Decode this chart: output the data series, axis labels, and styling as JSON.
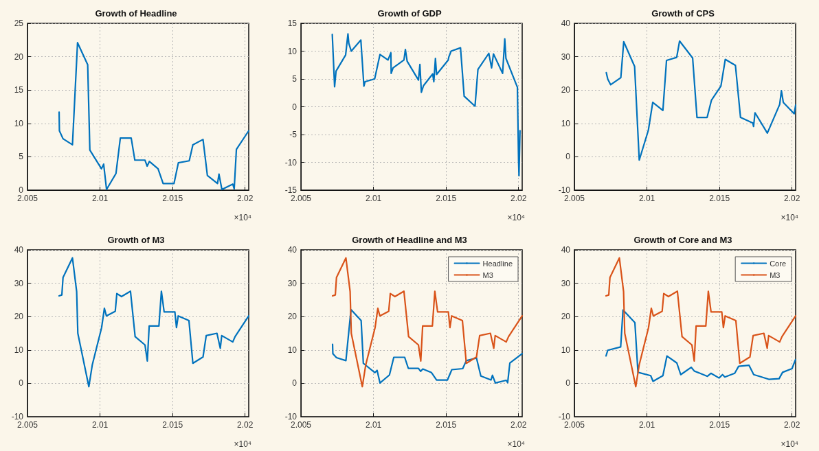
{
  "chart_data": [
    {
      "type": "line",
      "title": "Growth of Headline",
      "annotations": [
        "×10⁴"
      ],
      "xlim": [
        2.005,
        2.02025
      ],
      "xticks": [
        2.005,
        2.01,
        2.015,
        2.02
      ],
      "ylim": [
        0,
        25
      ],
      "yticks": [
        0,
        5,
        10,
        15,
        20,
        25
      ],
      "grid": true,
      "series": [
        {
          "color": "#0072bd",
          "x": [
            2.00718,
            2.0072,
            2.00745,
            2.0081,
            2.00845,
            2.00915,
            2.0093,
            2.0101,
            2.01025,
            2.01045,
            2.0111,
            2.0114,
            2.01215,
            2.0124,
            2.0131,
            2.01325,
            2.0134,
            2.014,
            2.01435,
            2.0151,
            2.0154,
            2.01615,
            2.0164,
            2.0171,
            2.0174,
            2.0181,
            2.0182,
            2.0184,
            2.01915,
            2.01925,
            2.0194,
            2.02025
          ],
          "values": [
            11.7,
            8.9,
            7.7,
            6.8,
            22.1,
            18.8,
            6.0,
            3.2,
            3.9,
            0.1,
            2.5,
            7.8,
            7.8,
            4.5,
            4.5,
            3.6,
            4.3,
            3.2,
            1.0,
            1.0,
            4.1,
            4.4,
            6.8,
            7.6,
            2.2,
            1.0,
            2.4,
            0.1,
            0.9,
            0.2,
            6.1,
            8.9
          ]
        }
      ]
    },
    {
      "type": "line",
      "title": "Growth of GDP",
      "annotations": [
        "×10⁴"
      ],
      "xlim": [
        2.005,
        2.02025
      ],
      "xticks": [
        2.005,
        2.01,
        2.015,
        2.02
      ],
      "ylim": [
        -15,
        15
      ],
      "yticks": [
        -15,
        -10,
        -5,
        0,
        5,
        10,
        15
      ],
      "grid": true,
      "series": [
        {
          "color": "#0072bd",
          "x": [
            2.00716,
            2.00732,
            2.00742,
            2.00808,
            2.00824,
            2.0083,
            2.00847,
            2.00913,
            2.00934,
            2.00942,
            2.01008,
            2.01045,
            2.011,
            2.0112,
            2.01122,
            2.01135,
            2.0121,
            2.0122,
            2.01232,
            2.0131,
            2.0132,
            2.0133,
            2.01345,
            2.01408,
            2.01416,
            2.01427,
            2.01435,
            2.01515,
            2.0152,
            2.01535,
            2.016,
            2.01625,
            2.017,
            2.0172,
            2.01795,
            2.01814,
            2.01827,
            2.0189,
            2.01905,
            2.01913,
            2.01992,
            2.02,
            2.02003,
            2.0201
          ],
          "values": [
            13.0,
            3.6,
            6.4,
            9.3,
            13.1,
            11.4,
            10.0,
            12.0,
            3.7,
            4.5,
            5.0,
            9.4,
            8.4,
            9.7,
            6.0,
            7.0,
            8.4,
            10.3,
            8.2,
            4.8,
            7.6,
            2.6,
            3.8,
            5.9,
            4.5,
            8.7,
            5.8,
            8.4,
            9.0,
            10.0,
            10.6,
            1.9,
            0.1,
            6.7,
            9.6,
            7.0,
            9.5,
            6.0,
            12.2,
            8.7,
            3.5,
            -9.7,
            -12.4,
            -4.3
          ]
        }
      ]
    },
    {
      "type": "line",
      "title": "Growth of CPS",
      "annotations": [
        "×10⁴"
      ],
      "xlim": [
        2.005,
        2.02025
      ],
      "xticks": [
        2.005,
        2.01,
        2.015,
        2.02
      ],
      "ylim": [
        -10,
        40
      ],
      "yticks": [
        -10,
        0,
        10,
        20,
        30,
        40
      ],
      "grid": true,
      "series": [
        {
          "color": "#0072bd",
          "x": [
            2.0072,
            2.0073,
            2.0075,
            2.0082,
            2.0084,
            2.00915,
            2.00947,
            2.0101,
            2.0104,
            2.0111,
            2.01135,
            2.01205,
            2.01225,
            2.01315,
            2.01345,
            2.01415,
            2.01445,
            2.0151,
            2.0154,
            2.0161,
            2.01645,
            2.0173,
            2.01735,
            2.01745,
            2.0183,
            2.01915,
            2.01927,
            2.0194,
            2.02015,
            2.02025
          ],
          "values": [
            25.2,
            23.3,
            21.6,
            23.7,
            34.5,
            27.1,
            -1.0,
            8.0,
            16.3,
            13.9,
            28.9,
            29.8,
            34.7,
            29.6,
            11.8,
            11.8,
            17.0,
            21.2,
            29.2,
            27.4,
            11.8,
            10.1,
            9.1,
            13.2,
            7.1,
            15.7,
            19.8,
            16.3,
            12.9,
            15.5
          ]
        }
      ]
    },
    {
      "type": "line",
      "title": "Growth of M3",
      "annotations": [
        "×10⁴"
      ],
      "xlim": [
        2.005,
        2.02025
      ],
      "xticks": [
        2.005,
        2.01,
        2.015,
        2.02
      ],
      "ylim": [
        -10,
        40
      ],
      "yticks": [
        -10,
        0,
        10,
        20,
        30,
        40
      ],
      "grid": true,
      "series": [
        {
          "color": "#0072bd",
          "x": [
            2.00718,
            2.00737,
            2.00745,
            2.0081,
            2.00839,
            2.00847,
            2.00923,
            2.00947,
            2.01011,
            2.0103,
            2.01044,
            2.01105,
            2.01116,
            2.01148,
            2.0121,
            2.01242,
            2.0131,
            2.01326,
            2.01339,
            2.01406,
            2.01423,
            2.01442,
            2.01516,
            2.01527,
            2.01539,
            2.01613,
            2.0164,
            2.0171,
            2.01732,
            2.01806,
            2.01829,
            2.01839,
            2.01915,
            2.01931,
            2.02025
          ],
          "values": [
            26.2,
            26.5,
            31.7,
            37.6,
            27.5,
            15.0,
            -1.0,
            5.6,
            16.7,
            22.5,
            20.2,
            21.6,
            26.9,
            26.0,
            27.6,
            14.0,
            11.5,
            6.7,
            17.2,
            17.2,
            27.6,
            21.4,
            21.4,
            16.7,
            20.2,
            18.8,
            6.0,
            7.9,
            14.3,
            15.0,
            10.5,
            14.3,
            12.4,
            14.0,
            20.2
          ]
        }
      ]
    },
    {
      "type": "line",
      "title": "Growth of Headline and M3",
      "annotations": [
        "×10⁴"
      ],
      "xlim": [
        2.005,
        2.02025
      ],
      "xticks": [
        2.005,
        2.01,
        2.015,
        2.02
      ],
      "ylim": [
        -10,
        40
      ],
      "yticks": [
        -10,
        0,
        10,
        20,
        30,
        40
      ],
      "grid": true,
      "legend": "top right",
      "series": [
        {
          "name": "Headline",
          "color": "#0072bd",
          "x": [
            2.00718,
            2.0072,
            2.00745,
            2.0081,
            2.00845,
            2.00915,
            2.0093,
            2.0101,
            2.01025,
            2.01045,
            2.0111,
            2.0114,
            2.01215,
            2.0124,
            2.0131,
            2.01325,
            2.0134,
            2.014,
            2.01435,
            2.0151,
            2.0154,
            2.01615,
            2.0164,
            2.0171,
            2.0174,
            2.0181,
            2.0182,
            2.0184,
            2.01915,
            2.01925,
            2.0194,
            2.02025
          ],
          "values": [
            11.7,
            8.9,
            7.7,
            6.8,
            22.1,
            18.8,
            6.0,
            3.2,
            3.9,
            0.1,
            2.5,
            7.8,
            7.8,
            4.5,
            4.5,
            3.6,
            4.3,
            3.2,
            1.0,
            1.0,
            4.1,
            4.4,
            6.8,
            7.6,
            2.2,
            1.0,
            2.4,
            0.1,
            0.9,
            0.2,
            6.1,
            8.9
          ]
        },
        {
          "name": "M3",
          "color": "#d95319",
          "x": [
            2.00718,
            2.00737,
            2.00745,
            2.0081,
            2.00839,
            2.00847,
            2.00923,
            2.00947,
            2.01011,
            2.0103,
            2.01044,
            2.01105,
            2.01116,
            2.01148,
            2.0121,
            2.01242,
            2.0131,
            2.01326,
            2.01339,
            2.01406,
            2.01423,
            2.01442,
            2.01516,
            2.01527,
            2.01539,
            2.01613,
            2.0164,
            2.0171,
            2.01732,
            2.01806,
            2.01829,
            2.01839,
            2.01915,
            2.01931,
            2.02025
          ],
          "values": [
            26.2,
            26.5,
            31.7,
            37.6,
            27.5,
            15.0,
            -1.0,
            5.6,
            16.7,
            22.5,
            20.2,
            21.6,
            26.9,
            26.0,
            27.6,
            14.0,
            11.5,
            6.7,
            17.2,
            17.2,
            27.6,
            21.4,
            21.4,
            16.7,
            20.2,
            18.8,
            6.0,
            7.9,
            14.3,
            15.0,
            10.5,
            14.3,
            12.4,
            14.0,
            20.2
          ]
        }
      ]
    },
    {
      "type": "line",
      "title": "Growth of Core and M3",
      "annotations": [
        "×10⁴"
      ],
      "xlim": [
        2.005,
        2.02025
      ],
      "xticks": [
        2.005,
        2.01,
        2.015,
        2.02
      ],
      "ylim": [
        -10,
        40
      ],
      "yticks": [
        -10,
        0,
        10,
        20,
        30,
        40
      ],
      "grid": true,
      "legend": "top right",
      "series": [
        {
          "name": "Core",
          "color": "#0072bd",
          "x": [
            2.00718,
            2.0073,
            2.00819,
            2.00835,
            2.00917,
            2.00938,
            2.01026,
            2.01042,
            2.0111,
            2.01138,
            2.01206,
            2.01233,
            2.01305,
            2.01326,
            2.01417,
            2.01441,
            2.01497,
            2.01521,
            2.01537,
            2.01605,
            2.01632,
            2.01704,
            2.01736,
            2.01776,
            2.0184,
            2.01911,
            2.01935,
            2.02,
            2.02024
          ],
          "values": [
            8.2,
            9.9,
            10.9,
            22.0,
            18.2,
            3.3,
            2.3,
            0.6,
            2.3,
            8.2,
            6.1,
            2.6,
            4.8,
            3.7,
            2.1,
            3.0,
            1.6,
            2.6,
            1.9,
            3.0,
            5.1,
            5.4,
            2.6,
            2.1,
            1.2,
            1.4,
            3.3,
            4.4,
            7.1
          ]
        },
        {
          "name": "M3",
          "color": "#d95319",
          "x": [
            2.00718,
            2.00737,
            2.00745,
            2.0081,
            2.00839,
            2.00847,
            2.00923,
            2.00947,
            2.01011,
            2.0103,
            2.01044,
            2.01105,
            2.01116,
            2.01148,
            2.0121,
            2.01242,
            2.0131,
            2.01326,
            2.01339,
            2.01406,
            2.01423,
            2.01442,
            2.01516,
            2.01527,
            2.01539,
            2.01613,
            2.0164,
            2.0171,
            2.01732,
            2.01806,
            2.01829,
            2.01839,
            2.01915,
            2.01931,
            2.02025
          ],
          "values": [
            26.2,
            26.5,
            31.7,
            37.6,
            27.5,
            15.0,
            -1.0,
            5.6,
            16.7,
            22.5,
            20.2,
            21.6,
            26.9,
            26.0,
            27.6,
            14.0,
            11.5,
            6.7,
            17.2,
            17.2,
            27.6,
            21.4,
            21.4,
            16.7,
            20.2,
            18.8,
            6.0,
            7.9,
            14.3,
            15.0,
            10.5,
            14.3,
            12.4,
            14.0,
            20.2
          ]
        }
      ]
    }
  ]
}
